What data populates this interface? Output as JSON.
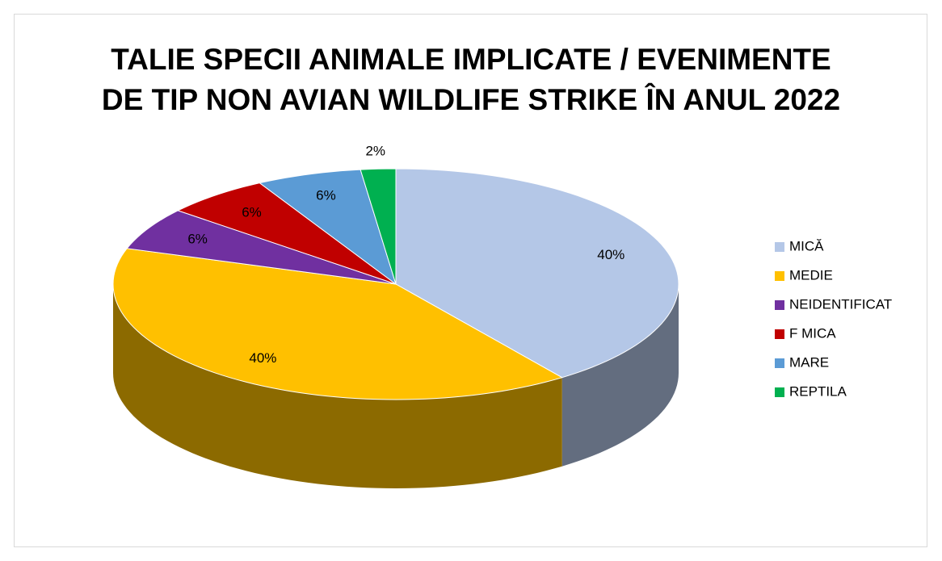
{
  "chart_data": {
    "type": "pie",
    "title": [
      "TALIE SPECII  ANIMALE IMPLICATE / EVENIMENTE",
      "DE TIP NON AVIAN WILDLIFE STRIKE ÎN ANUL 2022"
    ],
    "categories": [
      "MICĂ",
      "MEDIE",
      "NEIDENTIFICAT",
      "F MICA",
      "MARE",
      "REPTILA"
    ],
    "values": [
      40,
      40,
      6,
      6,
      6,
      2
    ],
    "value_labels": [
      "40%",
      "40%",
      "6%",
      "6%",
      "6%",
      "2%"
    ],
    "colors": [
      "#b4c7e7",
      "#ffc000",
      "#7030a0",
      "#c00000",
      "#5b9bd5",
      "#00b050"
    ],
    "legend": "right"
  }
}
